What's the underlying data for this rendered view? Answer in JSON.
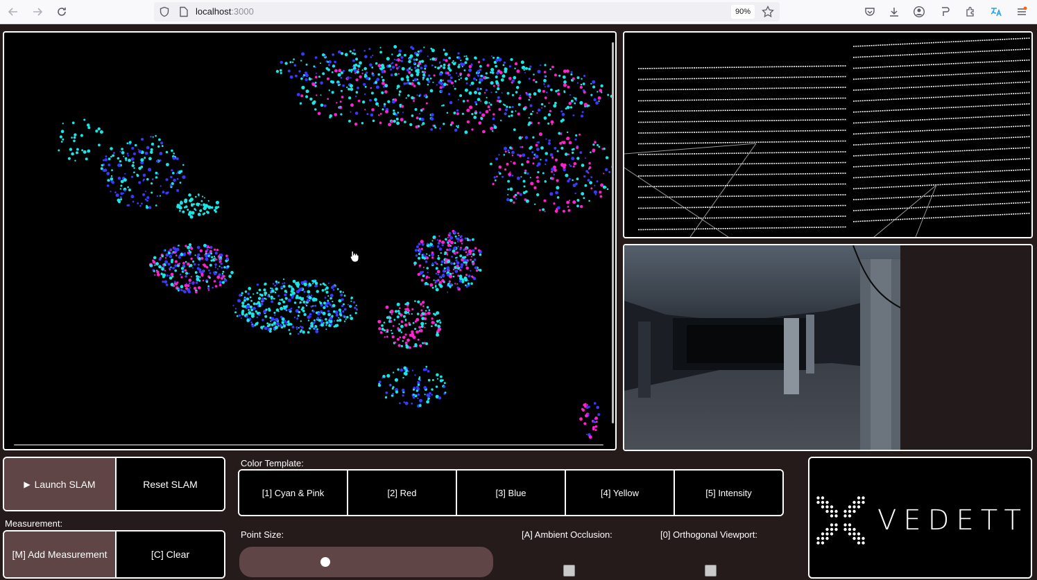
{
  "browser": {
    "url_host": "localhost",
    "url_port": ":3000",
    "zoom": "90%",
    "icons": [
      "back-icon",
      "forward-icon",
      "reload-icon",
      "shield-icon",
      "page-icon",
      "star-icon",
      "pocket-icon",
      "download-icon",
      "account-icon",
      "pin-icon",
      "extensions-icon",
      "translate-icon",
      "menu-icon"
    ]
  },
  "controls": {
    "launch_label": "Launch SLAM",
    "reset_label": "Reset SLAM",
    "measurement_title": "Measurement:",
    "add_measurement_label": "[M] Add Measurement",
    "clear_label": "[C] Clear"
  },
  "color_template": {
    "title": "Color Template:",
    "options": [
      "[1] Cyan & Pink",
      "[2] Red",
      "[3] Blue",
      "[4] Yellow",
      "[5] Intensity"
    ]
  },
  "settings": {
    "point_size_label": "Point Size:",
    "point_size_value": 0.34,
    "ambient_occlusion_label": "[A] Ambient Occlusion:",
    "orthogonal_viewport_label": "[0] Orthogonal Viewport:"
  },
  "logo": {
    "text": "VEDETTE"
  },
  "colors": {
    "background": "#261b1b",
    "accent": "#5f4545",
    "cyan": "#19e6e6",
    "pink": "#ff22cc",
    "blue": "#3a3aff"
  }
}
